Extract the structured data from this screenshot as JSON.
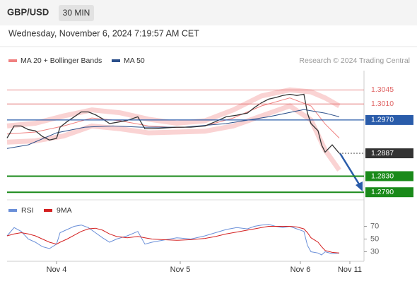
{
  "header": {
    "symbol": "GBP/USD",
    "interval": "30 MIN",
    "timestamp": "Wednesday, November 6, 2024 7:19:57 AM CET"
  },
  "chart_data": [
    {
      "type": "line",
      "credit": "Research © 2024 Trading Central",
      "xlim": [
        0,
        101
      ],
      "ylim": [
        1.2771,
        1.3093
      ],
      "xticks": [
        {
          "value": 14,
          "label": "Nov 4"
        },
        {
          "value": 49,
          "label": "Nov 5"
        },
        {
          "value": 83,
          "label": "Nov 6"
        },
        {
          "value": 97,
          "label": "Nov 11"
        }
      ],
      "price": {
        "color": "#333333",
        "x": [
          0,
          2,
          4,
          6,
          8,
          10,
          12,
          14,
          15,
          17,
          19,
          21,
          23,
          25,
          27,
          29,
          31,
          34,
          37,
          39,
          41,
          44,
          48,
          52,
          56,
          59,
          62,
          65,
          68,
          70,
          72,
          74,
          76,
          78,
          80,
          82,
          84,
          85,
          86,
          88,
          89,
          90,
          92,
          94
        ],
        "values": [
          1.2925,
          1.2955,
          1.2955,
          1.2946,
          1.2943,
          1.2929,
          1.292,
          1.2924,
          1.2952,
          1.2966,
          1.2978,
          1.299,
          1.299,
          1.2983,
          1.2973,
          1.2961,
          1.2964,
          1.2969,
          1.2978,
          1.2948,
          1.2948,
          1.295,
          1.2952,
          1.2952,
          1.2955,
          1.2966,
          1.2978,
          1.2982,
          1.2987,
          1.3001,
          1.3013,
          1.3022,
          1.3026,
          1.3031,
          1.3034,
          1.3031,
          1.3034,
          1.2987,
          1.2961,
          1.2943,
          1.2908,
          1.289,
          1.2908,
          1.2887
        ]
      },
      "series": [
        {
          "name": "MA 20 + Bollinger Bands",
          "color": "#f08080",
          "x": [
            0,
            8,
            16,
            24,
            32,
            40,
            48,
            56,
            64,
            72,
            80,
            86,
            90,
            94
          ],
          "values": [
            1.2935,
            1.294,
            1.2955,
            1.2975,
            1.2968,
            1.2955,
            1.2951,
            1.2955,
            1.2975,
            1.3005,
            1.3025,
            1.3005,
            1.296,
            1.2925
          ],
          "upper": [
            1.2955,
            1.2962,
            1.298,
            1.2995,
            1.2988,
            1.2972,
            1.2962,
            1.2968,
            1.2995,
            1.303,
            1.3045,
            1.304,
            1.3025,
            1.3005
          ],
          "lower": [
            1.2915,
            1.2918,
            1.293,
            1.2955,
            1.2948,
            1.2938,
            1.294,
            1.2942,
            1.2955,
            1.298,
            1.3005,
            1.297,
            1.2895,
            1.2845
          ]
        },
        {
          "name": "MA 50",
          "color": "#2b4f8a",
          "x": [
            0,
            6,
            14,
            22,
            30,
            38,
            50,
            62,
            74,
            84,
            90,
            94
          ],
          "values": [
            1.2899,
            1.2908,
            1.2938,
            1.2952,
            1.2955,
            1.2952,
            1.2952,
            1.2961,
            1.2978,
            1.2996,
            1.2987,
            1.2978
          ]
        }
      ],
      "levels": [
        {
          "value": 1.3045,
          "label": "1.3045",
          "color": "#e06666",
          "style": "thin"
        },
        {
          "value": 1.301,
          "label": "1.3010",
          "color": "#e06666",
          "style": "thin"
        },
        {
          "value": 1.297,
          "label": "1.2970",
          "color": "#2a5caa",
          "style": "solid"
        },
        {
          "value": 1.2887,
          "label": "1.2887",
          "color": "#333333",
          "style": "dotted"
        },
        {
          "value": 1.283,
          "label": "1.2830",
          "color": "#1a8a1a",
          "style": "solid"
        },
        {
          "value": 1.279,
          "label": "1.2790",
          "color": "#1a8a1a",
          "style": "solid"
        }
      ]
    },
    {
      "type": "line",
      "xlim": [
        0,
        101
      ],
      "ylim": [
        15,
        105
      ],
      "yticks": [
        30,
        50,
        70
      ],
      "x": [
        0,
        2,
        4,
        6,
        8,
        10,
        12,
        14,
        15,
        17,
        19,
        21,
        23,
        25,
        27,
        29,
        31,
        34,
        37,
        39,
        41,
        44,
        48,
        52,
        56,
        59,
        62,
        65,
        68,
        70,
        72,
        74,
        76,
        78,
        80,
        82,
        84,
        85,
        86,
        88,
        89,
        90,
        92,
        94
      ],
      "series": [
        {
          "name": "RSI",
          "color": "#6a8fd8",
          "values": [
            55,
            68,
            62,
            50,
            45,
            38,
            35,
            42,
            60,
            65,
            70,
            72,
            68,
            60,
            52,
            45,
            50,
            55,
            62,
            42,
            45,
            48,
            52,
            50,
            55,
            60,
            65,
            68,
            66,
            70,
            72,
            73,
            70,
            68,
            70,
            66,
            62,
            40,
            30,
            28,
            25,
            30,
            27,
            28
          ]
        },
        {
          "name": "9MA",
          "color": "#d42020",
          "values": [
            55,
            58,
            60,
            58,
            55,
            50,
            45,
            42,
            45,
            50,
            56,
            62,
            66,
            67,
            64,
            58,
            54,
            52,
            54,
            52,
            50,
            49,
            48,
            49,
            51,
            54,
            58,
            61,
            64,
            66,
            68,
            70,
            70,
            70,
            70,
            69,
            66,
            60,
            52,
            45,
            38,
            32,
            29,
            28
          ]
        }
      ]
    }
  ]
}
